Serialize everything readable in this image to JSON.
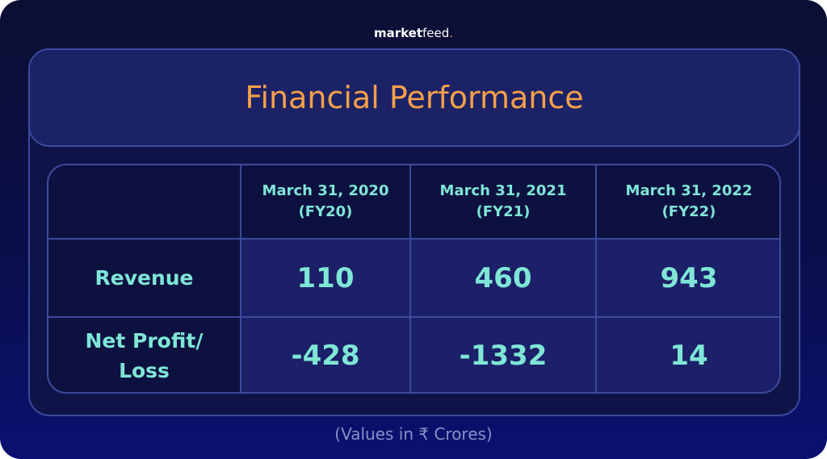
{
  "brand": {
    "parts": [
      "market",
      "feed",
      "."
    ]
  },
  "title": "Financial Performance",
  "table": {
    "columns": [
      {
        "date": "March 31, 2020",
        "label": "(FY20)"
      },
      {
        "date": "March 31, 2021",
        "label": "(FY21)"
      },
      {
        "date": "March 31, 2022",
        "label": "(FY22)"
      }
    ],
    "rows": [
      {
        "label": "Revenue",
        "values": [
          110,
          460,
          943
        ]
      },
      {
        "label": "Net Profit/ Loss",
        "values": [
          -428,
          -1332,
          14
        ]
      }
    ]
  },
  "footnote": "(Values in ₹ Crores)"
}
